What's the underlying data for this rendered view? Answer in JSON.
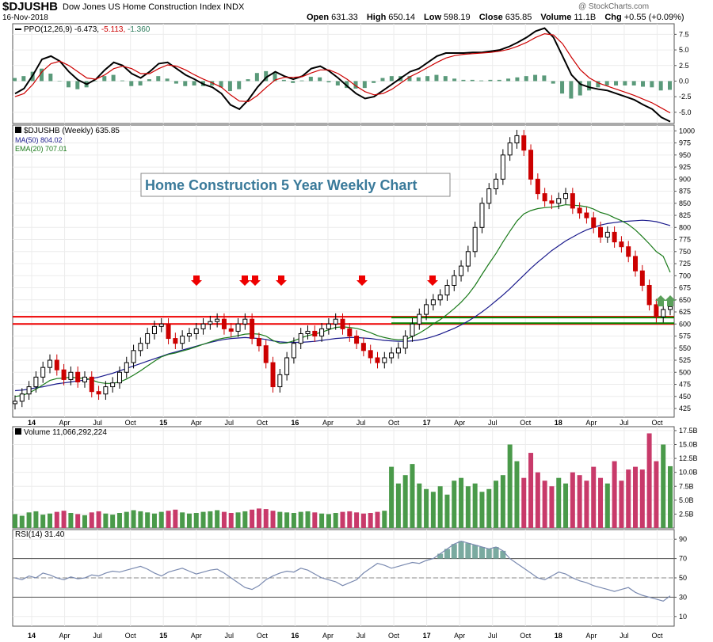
{
  "header": {
    "symbol": "$DJUSHB",
    "index_name": "Dow Jones US Home Construction Index",
    "exchange": "INDX",
    "date": "16-Nov-2018",
    "credit": "@ StockCharts.com",
    "ohlc": [
      {
        "label": "Open",
        "value": "631.33"
      },
      {
        "label": "High",
        "value": "650.14"
      },
      {
        "label": "Low",
        "value": "598.19"
      },
      {
        "label": "Close",
        "value": "635.85"
      },
      {
        "label": "Volume",
        "value": "11.1B"
      },
      {
        "label": "Chg",
        "value": "+0.55 (+0.09%)"
      }
    ]
  },
  "chart_data": {
    "type": "line",
    "title": "Home Construction 5 Year Weekly Chart",
    "x_tick_labels": [
      "14",
      "Apr",
      "Jul",
      "Oct",
      "15",
      "Apr",
      "Jul",
      "Oct",
      "16",
      "Apr",
      "Jul",
      "Oct",
      "17",
      "Apr",
      "Jul",
      "Oct",
      "18",
      "Apr",
      "Jul",
      "Oct"
    ],
    "panels": {
      "ppo": {
        "label": "PPO(12,26,9)",
        "values_text": [
          "-6.473",
          "-5.113",
          "-1.360"
        ],
        "y_ticks": [
          7.5,
          5.0,
          2.5,
          0.0,
          -2.5,
          -5.0
        ],
        "y_tick_labels": [
          "7.5",
          "5.0",
          "2.5",
          "0.0",
          "-2.5",
          "-5.0"
        ],
        "ylim": [
          -6.8,
          9.2
        ],
        "series": [
          {
            "name": "PPO",
            "color": "#000000",
            "values": [
              -2.0,
              -1.2,
              1.0,
              3.5,
              4.0,
              3.2,
              1.5,
              0.2,
              -0.5,
              0.3,
              1.8,
              3.0,
              2.5,
              1.2,
              0.5,
              1.5,
              2.8,
              3.0,
              2.0,
              1.0,
              0.3,
              -0.5,
              -1.0,
              -2.0,
              -3.8,
              -4.5,
              -3.0,
              -1.0,
              0.6,
              1.5,
              0.8,
              0.3,
              0.8,
              2.0,
              2.4,
              1.6,
              0.5,
              -0.8,
              -2.0,
              -2.8,
              -2.5,
              -1.5,
              -0.5,
              0.5,
              1.5,
              2.0,
              3.0,
              4.0,
              4.5,
              4.5,
              4.5,
              4.6,
              4.6,
              4.8,
              5.0,
              5.5,
              6.2,
              7.0,
              8.0,
              8.5,
              7.0,
              4.0,
              1.0,
              -0.5,
              -1.0,
              -1.3,
              -1.5,
              -2.0,
              -2.5,
              -3.0,
              -3.8,
              -4.5,
              -5.8,
              -6.5
            ]
          },
          {
            "name": "Signal",
            "color": "#cc0000",
            "values": [
              -2.5,
              -2.0,
              -0.5,
              1.5,
              2.8,
              3.2,
              2.5,
              1.5,
              0.5,
              0.3,
              1.0,
              2.0,
              2.4,
              2.0,
              1.2,
              1.2,
              2.0,
              2.6,
              2.4,
              1.8,
              1.0,
              0.3,
              -0.3,
              -1.0,
              -2.2,
              -3.2,
              -3.3,
              -2.3,
              -1.0,
              0.2,
              0.6,
              0.6,
              0.7,
              1.3,
              1.8,
              1.8,
              1.2,
              0.3,
              -0.8,
              -1.7,
              -2.2,
              -2.0,
              -1.3,
              -0.3,
              0.7,
              1.4,
              2.2,
              3.0,
              3.7,
              4.1,
              4.3,
              4.4,
              4.5,
              4.6,
              4.8,
              5.1,
              5.6,
              6.2,
              7.0,
              7.6,
              7.4,
              6.0,
              3.8,
              1.8,
              0.5,
              -0.3,
              -0.8,
              -1.3,
              -1.8,
              -2.3,
              -2.9,
              -3.5,
              -4.3,
              -5.1
            ]
          }
        ]
      },
      "price": {
        "label": "$DJUSHB (Weekly) 635.85",
        "legend": [
          {
            "name": "MA(50)",
            "value": "804.02",
            "color": "#1a1a8c"
          },
          {
            "name": "EMA(20)",
            "value": "707.01",
            "color": "#1a7a1a"
          }
        ],
        "y_ticks": [
          425,
          450,
          475,
          500,
          525,
          550,
          575,
          600,
          625,
          650,
          675,
          700,
          725,
          750,
          775,
          800,
          825,
          850,
          875,
          900,
          925,
          950,
          975,
          1000
        ],
        "y_tick_labels": [
          "425",
          "450",
          "475",
          "500",
          "525",
          "550",
          "575",
          "600",
          "625",
          "650",
          "675",
          "700",
          "725",
          "750",
          "775",
          "800",
          "825",
          "850",
          "875",
          "900",
          "925",
          "950",
          "975",
          "1000"
        ],
        "ylim": [
          407,
          1012
        ],
        "close": [
          440,
          455,
          470,
          490,
          510,
          525,
          505,
          485,
          500,
          480,
          490,
          460,
          455,
          470,
          478,
          500,
          520,
          545,
          560,
          580,
          595,
          600,
          570,
          560,
          575,
          580,
          590,
          600,
          605,
          610,
          590,
          585,
          600,
          610,
          570,
          555,
          520,
          470,
          495,
          530,
          560,
          580,
          585,
          575,
          590,
          600,
          610,
          590,
          575,
          560,
          545,
          530,
          520,
          530,
          540,
          550,
          575,
          600,
          620,
          640,
          650,
          660,
          680,
          700,
          720,
          750,
          800,
          850,
          880,
          900,
          950,
          975,
          990,
          960,
          900,
          870,
          855,
          850,
          860,
          870,
          840,
          830,
          820,
          800,
          780,
          790,
          770,
          760,
          740,
          710,
          680,
          640,
          615,
          630,
          636
        ],
        "ma50": [
          462,
          463,
          465,
          468,
          470,
          473,
          476,
          478,
          480,
          482,
          484,
          487,
          490,
          494,
          498,
          503,
          508,
          513,
          518,
          523,
          528,
          533,
          538,
          542,
          546,
          550,
          554,
          558,
          562,
          565,
          568,
          570,
          571,
          572,
          571,
          570,
          568,
          565,
          563,
          562,
          562,
          562,
          563,
          564,
          566,
          568,
          570,
          571,
          572,
          572,
          571,
          570,
          568,
          566,
          565,
          564,
          564,
          565,
          567,
          570,
          574,
          579,
          585,
          591,
          598,
          606,
          615,
          625,
          636,
          648,
          660,
          673,
          687,
          701,
          715,
          728,
          740,
          752,
          762,
          772,
          780,
          788,
          795,
          800,
          805,
          808,
          810,
          812,
          813,
          814,
          815,
          814,
          812,
          808,
          804
        ],
        "ema20": [
          450,
          452,
          457,
          465,
          474,
          483,
          487,
          488,
          490,
          488,
          488,
          484,
          479,
          477,
          477,
          480,
          486,
          494,
          503,
          513,
          523,
          532,
          537,
          540,
          544,
          548,
          553,
          558,
          563,
          568,
          571,
          573,
          576,
          579,
          580,
          579,
          575,
          566,
          560,
          561,
          565,
          571,
          576,
          579,
          583,
          588,
          593,
          594,
          593,
          591,
          587,
          582,
          576,
          572,
          569,
          567,
          568,
          574,
          581,
          590,
          600,
          609,
          620,
          632,
          645,
          661,
          680,
          703,
          725,
          746,
          770,
          792,
          813,
          828,
          835,
          839,
          841,
          842,
          844,
          847,
          846,
          845,
          843,
          838,
          831,
          827,
          820,
          814,
          806,
          795,
          781,
          766,
          750,
          740,
          707
        ],
        "support_lines": [
          {
            "value": 615,
            "color": "#ee0000"
          },
          {
            "value": 600,
            "color": "#ee0000"
          },
          {
            "value": 615,
            "color": "#008800"
          },
          {
            "value": 600,
            "color": "#008800"
          }
        ],
        "resistance_markers": [
          "Mar 2015",
          "Jul 2015",
          "Aug 2015",
          "Nov 2015",
          "Jun 2016",
          "Jan 2017"
        ],
        "support_markers": [
          "Oct 2018",
          "Nov 2018"
        ]
      },
      "volume": {
        "label": "Volume 11,066,292,224",
        "y_ticks": [
          2.5,
          5.0,
          7.5,
          10.0,
          12.5,
          15.0,
          17.5
        ],
        "y_tick_labels": [
          "2.5B",
          "5.0B",
          "7.5B",
          "10.0B",
          "12.5B",
          "15.0B",
          "17.5B"
        ],
        "ylim": [
          0,
          18.2
        ],
        "unit": "B",
        "values": [
          2.5,
          2.2,
          2.8,
          3.0,
          2.4,
          2.6,
          2.9,
          3.1,
          2.7,
          2.5,
          2.3,
          2.8,
          3.0,
          2.6,
          2.4,
          2.7,
          2.9,
          3.2,
          3.0,
          2.8,
          2.6,
          2.9,
          3.1,
          3.3,
          2.8,
          2.6,
          2.7,
          2.9,
          3.0,
          3.2,
          2.9,
          2.7,
          2.8,
          3.0,
          3.3,
          3.5,
          3.4,
          3.1,
          2.9,
          2.8,
          2.7,
          2.9,
          3.0,
          2.8,
          2.6,
          2.5,
          2.7,
          2.9,
          3.0,
          2.8,
          2.6,
          2.7,
          2.9,
          3.1,
          11.0,
          8.0,
          9.5,
          11.5,
          8.0,
          7.0,
          6.5,
          7.5,
          6.0,
          8.5,
          9.0,
          7.5,
          8.0,
          6.5,
          7.0,
          8.5,
          9.5,
          15.0,
          12.0,
          9.0,
          13.5,
          10.0,
          8.5,
          7.5,
          9.0,
          8.0,
          10.0,
          9.5,
          8.5,
          11.0,
          9.0,
          8.0,
          12.0,
          8.5,
          10.5,
          11.0,
          10.5,
          17.0,
          12.0,
          15.0,
          11.1
        ]
      },
      "rsi": {
        "label": "RSI(14) 31.40",
        "y_ticks": [
          10,
          30,
          50,
          70,
          90
        ],
        "y_tick_labels": [
          "10",
          "30",
          "50",
          "70",
          "90"
        ],
        "ylim": [
          0,
          100
        ],
        "overbought": 70,
        "oversold": 30,
        "values": [
          50,
          48,
          52,
          50,
          55,
          53,
          50,
          48,
          51,
          49,
          50,
          53,
          52,
          55,
          57,
          56,
          58,
          60,
          62,
          59,
          55,
          52,
          56,
          58,
          60,
          57,
          54,
          56,
          58,
          59,
          55,
          50,
          45,
          40,
          38,
          42,
          48,
          52,
          55,
          57,
          56,
          60,
          58,
          54,
          50,
          48,
          46,
          42,
          45,
          48,
          55,
          60,
          65,
          63,
          60,
          62,
          64,
          66,
          65,
          68,
          70,
          75,
          80,
          85,
          88,
          86,
          84,
          82,
          80,
          82,
          78,
          70,
          65,
          60,
          55,
          50,
          48,
          52,
          56,
          54,
          50,
          47,
          45,
          42,
          40,
          38,
          36,
          38,
          40,
          35,
          32,
          30,
          28,
          26,
          31.4
        ]
      }
    }
  },
  "colors": {
    "up_candle": "#000000",
    "down_candle": "#cc0000",
    "vol_up": "#4a9a4a",
    "vol_down": "#c83a6a",
    "hist": "#5a9a7a",
    "rsi_line": "#7a8ab0",
    "rsi_fill": "#7aaaa0",
    "title_text": "#3a7a9a"
  }
}
